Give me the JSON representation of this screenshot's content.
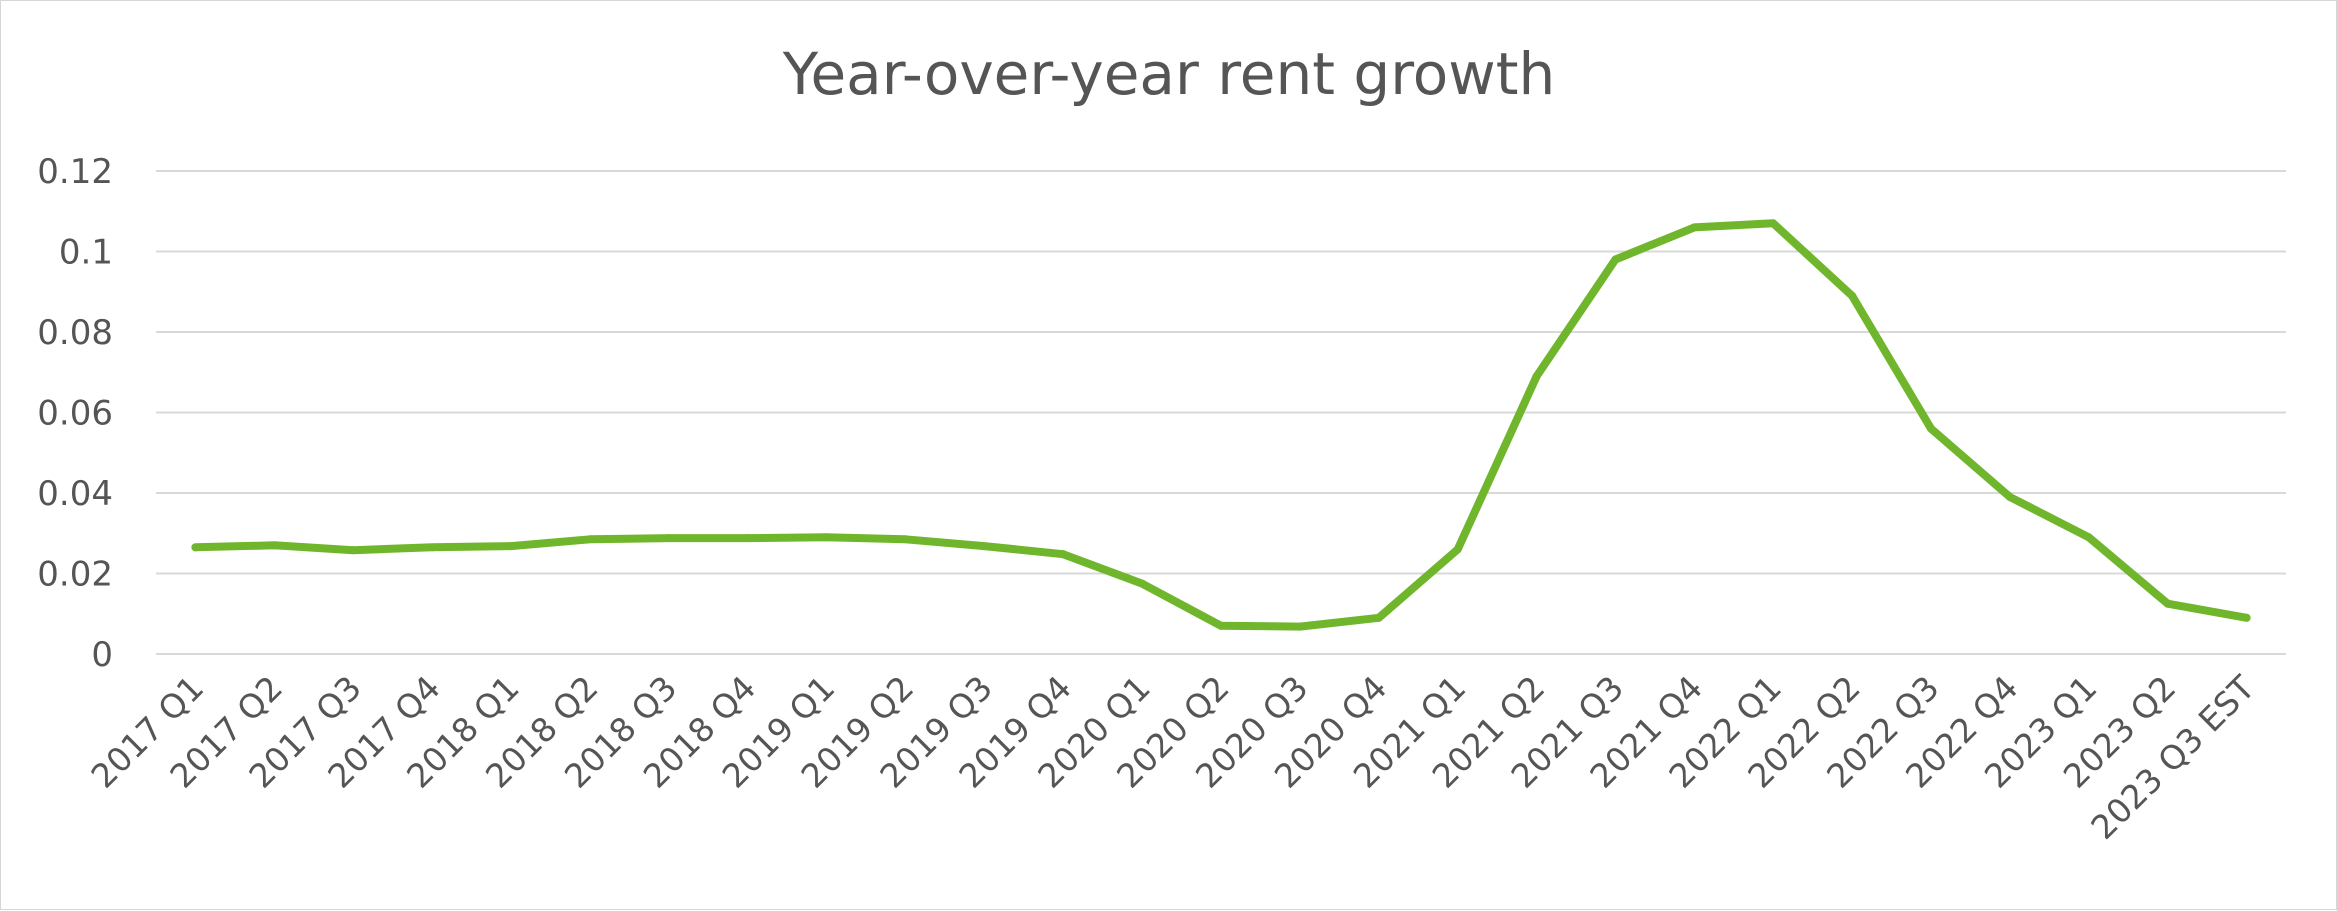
{
  "chart_data": {
    "type": "line",
    "title": "Year-over-year rent growth",
    "xlabel": "",
    "ylabel": "",
    "ylim": [
      0,
      0.12
    ],
    "yticks": [
      0,
      0.02,
      0.04,
      0.06,
      0.08,
      0.1,
      0.12
    ],
    "ytick_labels": [
      "0",
      "0.02",
      "0.04",
      "0.06",
      "0.08",
      "0.1",
      "0.12"
    ],
    "grid": true,
    "legend": "none",
    "categories": [
      "2017 Q1",
      "2017 Q2",
      "2017 Q3",
      "2017 Q4",
      "2018 Q1",
      "2018 Q2",
      "2018 Q3",
      "2018 Q4",
      "2019 Q1",
      "2019 Q2",
      "2019 Q3",
      "2019 Q4",
      "2020 Q1",
      "2020 Q2",
      "2020 Q3",
      "2020 Q4",
      "2021 Q1",
      "2021 Q2",
      "2021 Q3",
      "2021 Q4",
      "2022 Q1",
      "2022 Q2",
      "2022 Q3",
      "2022 Q4",
      "2023 Q1",
      "2023 Q2",
      "2023 Q3 EST"
    ],
    "series": [
      {
        "color": "#70b62c",
        "values": [
          0.0265,
          0.027,
          0.0258,
          0.0265,
          0.0268,
          0.0285,
          0.0288,
          0.0288,
          0.029,
          0.0285,
          0.0268,
          0.0248,
          0.0175,
          0.007,
          0.0068,
          0.009,
          0.026,
          0.069,
          0.098,
          0.106,
          0.107,
          0.089,
          0.056,
          0.039,
          0.029,
          0.0125,
          0.009
        ]
      }
    ]
  }
}
